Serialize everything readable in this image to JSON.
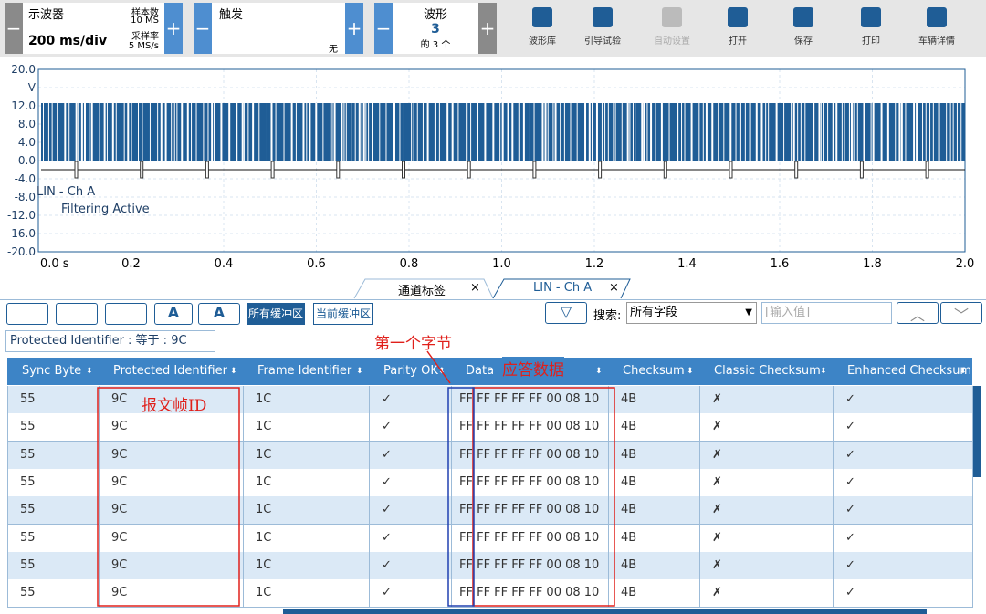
{
  "toolbar": {
    "scope": {
      "title": "示波器",
      "timebase": "200 ms/div",
      "sample_count_label": "样本数",
      "sample_count": "10 MS",
      "sample_rate_label": "采样率",
      "sample_rate": "5 MS/s"
    },
    "trigger": {
      "title": "触发",
      "mode": "无"
    },
    "waveform": {
      "title": "波形",
      "value": "3",
      "count": "的 3 个"
    },
    "buttons": [
      "波形库",
      "引导试验",
      "自动设置",
      "打开",
      "保存",
      "打印",
      "车辆详情"
    ]
  },
  "scope": {
    "yticks": [
      "20.0",
      "V",
      "12.0",
      "8.0",
      "4.0",
      "0.0",
      "-4.0",
      "-8.0",
      "-12.0",
      "-16.0",
      "-20.0"
    ],
    "xticks": [
      "0.0 s",
      "0.2",
      "0.4",
      "0.6",
      "0.8",
      "1.0",
      "1.2",
      "1.4",
      "1.6",
      "1.8",
      "2.0"
    ],
    "channel": "LIN - Ch A",
    "status": "Filtering Active"
  },
  "tabs": [
    "通道标签",
    "LIN - Ch A"
  ],
  "filter_bar": {
    "buffers": [
      "所有缓冲区",
      "当前缓冲区"
    ],
    "search_label": "搜索:",
    "field": "所有字段",
    "placeholder": "[输入值]"
  },
  "filter_tag": "Protected Identifier : 等于 : 9C",
  "annotations": {
    "first_byte": "第一个字节",
    "response_data": "应答数据",
    "frame_id": "报文帧ID"
  },
  "table": {
    "columns": [
      "Sync Byte",
      "Protected Identifier",
      "Frame Identifier",
      "Parity OK",
      "Data",
      "Checksum",
      "Classic Checksum",
      "Enhanced Checksum"
    ],
    "rows": [
      [
        "55",
        "9C",
        "1C",
        "✓",
        "FF FF FF FF FF 00 08 10",
        "4B",
        "✗",
        "✓"
      ],
      [
        "55",
        "9C",
        "1C",
        "✓",
        "FF FF FF FF FF 00 08 10",
        "4B",
        "✗",
        "✓"
      ],
      [
        "55",
        "9C",
        "1C",
        "✓",
        "FF FF FF FF FF 00 08 10",
        "4B",
        "✗",
        "✓"
      ],
      [
        "55",
        "9C",
        "1C",
        "✓",
        "FF FF FF FF FF 00 08 10",
        "4B",
        "✗",
        "✓"
      ],
      [
        "55",
        "9C",
        "1C",
        "✓",
        "FF FF FF FF FF 00 08 10",
        "4B",
        "✗",
        "✓"
      ],
      [
        "55",
        "9C",
        "1C",
        "✓",
        "FF FF FF FF FF 00 08 10",
        "4B",
        "✗",
        "✓"
      ],
      [
        "55",
        "9C",
        "1C",
        "✓",
        "FF FF FF FF FF 00 08 10",
        "4B",
        "✗",
        "✓"
      ],
      [
        "55",
        "9C",
        "1C",
        "✓",
        "FF FF FF FF FF 00 08 10",
        "4B",
        "✗",
        "✓"
      ]
    ]
  }
}
